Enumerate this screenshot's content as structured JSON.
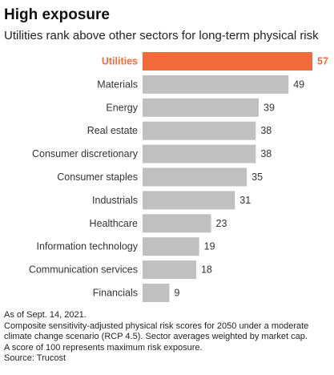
{
  "header": {
    "title": "High exposure",
    "subtitle": "Utilities rank above other sectors for long-term physical risk"
  },
  "colors": {
    "highlight_bar": "#f26b3a",
    "highlight_text": "#f26b3a",
    "bar": "#c0c0c0",
    "label_text": "#333333"
  },
  "chart_data": {
    "type": "bar",
    "orientation": "horizontal",
    "title": "",
    "xlabel": "",
    "ylabel": "",
    "xlim": [
      0,
      57
    ],
    "grid": false,
    "legend": "none",
    "highlighted_category": "Utilities",
    "categories": [
      "Utilities",
      "Materials",
      "Energy",
      "Real estate",
      "Consumer discretionary",
      "Consumer staples",
      "Industrials",
      "Healthcare",
      "Information technology",
      "Communication services",
      "Financials"
    ],
    "values": [
      57,
      49,
      39,
      38,
      38,
      35,
      31,
      23,
      19,
      18,
      9
    ]
  },
  "footnotes": {
    "date": "As of Sept. 14, 2021.",
    "note_line1": "Composite sensitivity-adjusted physical risk scores for 2050 under a moderate",
    "note_line2": "climate change scenario (RCP 4.5). Sector averages weighted by market cap.",
    "note_line3": "A score of 100 represents maximum risk exposure.",
    "source": "Source: Trucost"
  }
}
